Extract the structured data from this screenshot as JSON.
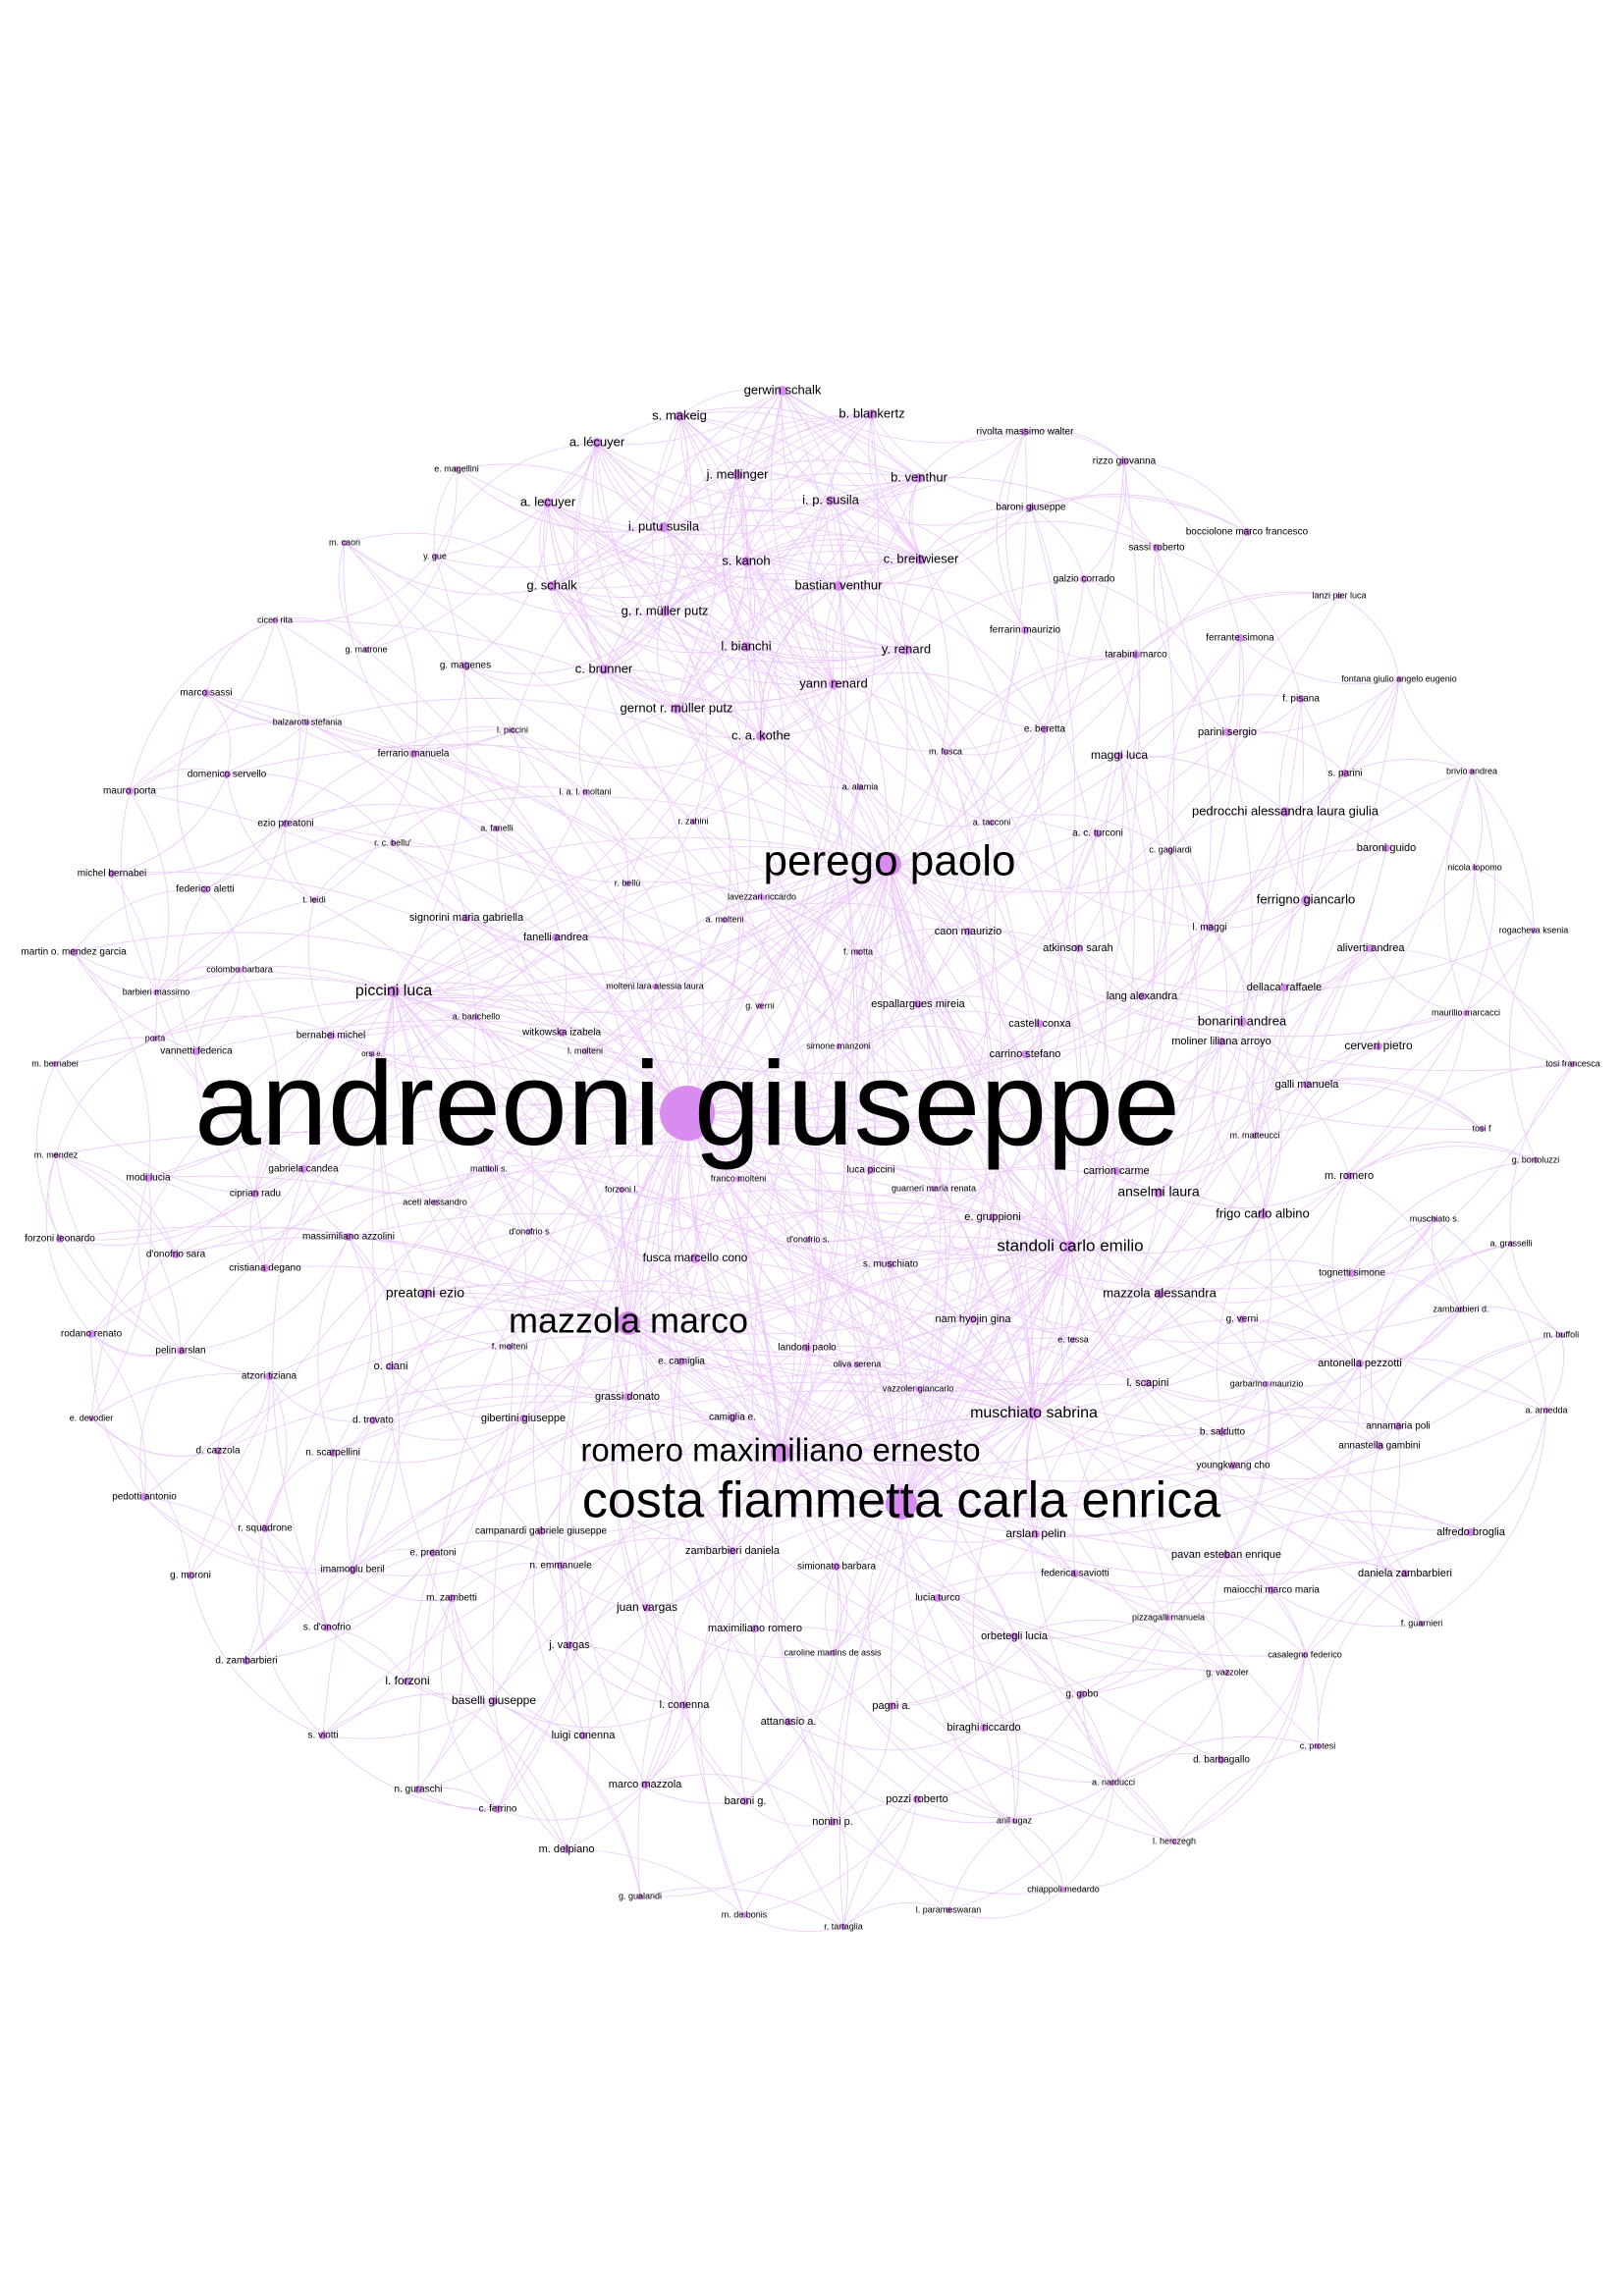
{
  "graph": {
    "labels": {
      "andreoni-giuseppe": "andreoni giuseppe",
      "perego-paolo": "perego paolo",
      "mazzola-marco": "mazzola marco",
      "romero-maximiliano-ernesto": "romero maximiliano ernesto",
      "costa-fiammetta-carla-enrica": "costa fiammetta carla enrica",
      "piccini-luca": "piccini luca",
      "standoli-carlo-emilio": "standoli carlo emilio",
      "muschiato-sabrina": "muschiato sabrina",
      "preatoni-ezio": "preatoni ezio",
      "fusca-marcello-cono": "fusca marcello cono",
      "gerwin-schalk": "gerwin schalk",
      "s-makeig": "s. makeig",
      "b-blankertz": "b. blankertz",
      "a-lecuyer-accent": "a. lécuyer",
      "j-mellinger": "j. mellinger",
      "b-venthur": "b. venthur",
      "a-lecuyer": "a. lecuyer",
      "i-p-susila": "i. p. susila",
      "i-putu-susila": "i. putu susila",
      "s-kanoh": "s. kanoh",
      "c-breitwieser": "c. breitwieser",
      "g-schalk": "g. schalk",
      "bastian-venthur": "bastian venthur",
      "g-r-muller-putz": "g. r. müller putz",
      "l-bianchi": "l. bianchi",
      "y-renard": "y. renard",
      "c-brunner": "c. brunner",
      "yann-renard": "yann renard",
      "gernot-r-muller-putz": "gernot r. müller putz",
      "c-a-kothe": "c. a. kothe",
      "rivolta-massimo-walter": "rivolta massimo walter",
      "rizzo-giovanna": "rizzo giovanna",
      "baroni-giuseppe": "baroni giuseppe",
      "bocciolone-marco-francesco": "bocciolone marco francesco",
      "sassi-roberto": "sassi roberto",
      "galzio-corrado": "galzio corrado",
      "lanzi-pier-luca": "lanzi pier luca",
      "ferrarin-maurizio": "ferrarin maurizio",
      "ferrante-simona": "ferrante simona",
      "tarabini-marco": "tarabini marco",
      "fontana-giulio-angelo-eugenio": "fontana giulio angelo eugenio",
      "f-pisana": "f. pisana",
      "e-beretta": "e. beretta",
      "maggi-luca": "maggi luca",
      "parini-sergio": "parini sergio",
      "m-fusca": "m. fusca",
      "s-parini": "s. parini",
      "brivio-andrea": "brivio andrea",
      "pedrocchi-alessandra-laura-giulia": "pedrocchi alessandra laura giulia",
      "a-alamia": "a. alamia",
      "a-tacconi": "a. tacconi",
      "a-c-turconi": "a. c. turconi",
      "baroni-guido": "baroni guido",
      "c-gagliardi": "c. gagliardi",
      "nicola-lopomo": "nicola lopomo",
      "ferrigno-giancarlo": "ferrigno giancarlo",
      "rogacheva-ksenia": "rogacheva ksenia",
      "l-maggi": "l. maggi",
      "caon-maurizio": "caon maurizio",
      "atkinson-sarah": "atkinson sarah",
      "aliverti-andrea": "aliverti andrea",
      "f-motta": "f. motta",
      "dellaca-raffaele": "dellaca' raffaele",
      "lang-alexandra": "lang alexandra",
      "espallargues-mireia": "espallargues mireia",
      "maurilio-marcacci": "maurilio marcacci",
      "bonarini-andrea": "bonarini andrea",
      "castell-conxa": "castell conxa",
      "moliner-liliana-arroyo": "moliner liliana arroyo",
      "cerveri-pietro": "cerveri pietro",
      "carrino-stefano": "carrino stefano",
      "tosi-francesca": "tosi francesca",
      "galli-manuela": "galli manuela",
      "simone-manzoni": "simone manzoni",
      "tosi-f": "tosi f",
      "m-matteucci": "m. matteucci",
      "carrion-carme": "carrion carme",
      "g-bortoluzzi": "g. bortoluzzi",
      "luca-piccini": "luca piccini",
      "m-romero": "m. romero",
      "anselmi-laura": "anselmi laura",
      "guarneri-maria-renata": "guarneri maria renata",
      "e-gruppioni": "e. gruppioni",
      "frigo-carlo-albino": "frigo carlo albino",
      "muschiato-s": "muschiato s.",
      "a-grasselli": "a. grasselli",
      "d-onofrio-s-right": "d'onofrio s.",
      "s-muschiato": "s. muschiato",
      "tognetti-simone": "tognetti simone",
      "mazzola-alessandra": "mazzola alessandra",
      "zambarbieri-d": "zambarbieri d.",
      "nam-hyojin-gina": "nam hyojin gina",
      "g-verni-right": "g. verni",
      "e-tessa": "e. tessa",
      "m-buffoli": "m. buffoli",
      "antonella-pezzotti": "antonella pezzotti",
      "l-scapini": "l. scapini",
      "garbarino-maurizio": "garbarino maurizio",
      "a-arnedda": "a. arnedda",
      "annamaria-poli": "annamaria poli",
      "b-saldutto": "b. saldutto",
      "annastella-gambini": "annastella gambini",
      "youngkwang-cho": "youngkwang cho",
      "alfredo-broglia": "alfredo broglia",
      "arslan-pelin": "arslan pelin",
      "pavan-esteban-enrique": "pavan esteban enrique",
      "daniela-zambarbieri": "daniela zambarbieri",
      "federica-saviotti": "federica saviotti",
      "maiocchi-marco-maria": "maiocchi marco maria",
      "pizzagalli-manuela": "pizzagalli manuela",
      "f-guarnieri": "f. guarnieri",
      "casalegno-federico": "casalegno federico",
      "orbetegli-lucia": "orbetegli lucia",
      "g-vazzoler": "g. vazzoler",
      "g-gobo": "g. gobo",
      "c-protesi": "c. protesi",
      "biraghi-riccardo": "biraghi riccardo",
      "d-barbagallo": "d. barbagallo",
      "a-narducci": "a. narducci",
      "l-herczegh": "l. herczegh",
      "anil-ugaz": "anil ugaz",
      "chiappoli-medardo": "chiappoli medardo",
      "l-parameswaran": "l. parameswaran",
      "pozzi-roberto": "pozzi roberto",
      "pagni-a": "pagni a.",
      "nonini-p": "nonini p.",
      "attanasio-a": "attanasio a.",
      "r-tartaglia": "r. tartaglia",
      "m-de-bonis": "m. de bonis",
      "baroni-g": "baroni g.",
      "marco-mazzola": "marco mazzola",
      "g-gualandi": "g. gualandi",
      "m-delpiano": "m. delpiano",
      "c-ferrino": "c. ferrino",
      "n-guraschi": "n. guraschi",
      "luigi-conenna": "luigi conenna",
      "l-conenna": "l. conenna",
      "baselli-giuseppe": "baselli giuseppe",
      "l-forzoni": "l. forzoni",
      "s-viotti": "s. viotti",
      "d-zambarbieri": "d. zambarbieri",
      "s-d-onofrio": "s. d'onofrio",
      "j-vargas": "j. vargas",
      "caroline-martins-de-assis": "caroline martins de assis",
      "maximiliano-romero": "maximiliano romero",
      "lucia-turco": "lucia turco",
      "juan-vargas": "juan vargas",
      "m-zambetti": "m. zambetti",
      "simionato-barbara": "simionato barbara",
      "zambarbieri-daniela": "zambarbieri daniela",
      "n-emmanuele": "n. emmanuele",
      "e-preatoni": "e. preatoni",
      "imamoglu-beril": "imamoglu beril",
      "g-moroni": "g. moroni",
      "campanardi-gabriele-giuseppe": "campanardi gabriele giuseppe",
      "r-squadrone": "r. squadrone",
      "pedotti-antonio": "pedotti antonio",
      "d-cazzola": "d. cazzola",
      "n-scarpellini": "n. scarpellini",
      "e-devodier": "e. devodier",
      "d-trovato": "d. trovato",
      "gibertini-giuseppe": "gibertini giuseppe",
      "camiglia-e": "camiglia e.",
      "grassi-donato": "grassi donato",
      "vazzoler-giancarlo": "vazzoler giancarlo",
      "oliva-serena": "oliva serena",
      "e-camiglia": "e. camiglia",
      "landoni-paolo": "landoni paolo",
      "f-molteni": "f. molteni",
      "o-ciani": "o. ciani",
      "atzori-tiziana": "atzori tiziana",
      "pelin-arslan": "pelin arslan",
      "rodano-renato": "rodano renato",
      "cristiana-degano": "cristiana degano",
      "d-onofrio-sara": "d'onofrio sara",
      "forzoni-leonardo": "forzoni leonardo",
      "massimiliano-azzolini": "massimiliano azzolini",
      "ciprian-radu": "ciprian radu",
      "modi-lucia": "modi lucia",
      "m-mendez": "m. mendez",
      "gabriela-candea": "gabriela candea",
      "aceti-alessandro": "aceti alessandro",
      "d-onofrio-s-left": "d'onofrio s",
      "forzoni-l": "forzoni l.",
      "franco-molteni": "franco molteni",
      "mattioli-s": "mattioli s.",
      "m-bernabei": "m. bernabei",
      "vannetti-federica": "vannetti federica",
      "orsi-e": "orsi e.",
      "bernabei-michel": "bernabei michel",
      "l-molteni": "l. molteni",
      "witkowska-izabela": "witkowska izabela",
      "a-barichello": "a. barichello",
      "g-verni-center": "g. verni",
      "molteni-lara-alessia-laura": "molteni lara alessia laura",
      "barbieri-massimo": "barbieri massimo",
      "porta": "porta",
      "colombo-barbara": "colombo barbara",
      "martin-o-mendez-garcia": "martin o. mendez garcia",
      "michel-bernabei": "michel bernabei",
      "federico-aletti": "federico aletti",
      "t-leidi": "t. leidi",
      "signorini-maria-gabriella": "signorini maria gabriella",
      "fanelli-andrea": "fanelli andrea",
      "r-bellu": "r. bellù",
      "lavezzari-riccardo": "lavezzari riccardo",
      "a-molteni": "a. molteni",
      "mauro-porta": "mauro porta",
      "ezio-preatoni": "ezio preatoni",
      "domenico-servello": "domenico servello",
      "r-c-bellu": "r. c. bellu'",
      "a-fanelli": "a. fanelli",
      "r-zahini": "r. zahini",
      "l-a-l-moltani": "l. a. l. moltani",
      "marco-sassi": "marco sassi",
      "balzarotti-stefania": "balzarotti stefania",
      "ferrario-manuela": "ferrario manuela",
      "l-piccini": "l. piccini",
      "ciceri-rita": "ciceri rita",
      "g-matrone": "g. matrone",
      "g-magenes": "g. magenes",
      "m-caon": "m. caon",
      "y-gue": "y. gue",
      "e-magellini": "e. magellini"
    }
  }
}
